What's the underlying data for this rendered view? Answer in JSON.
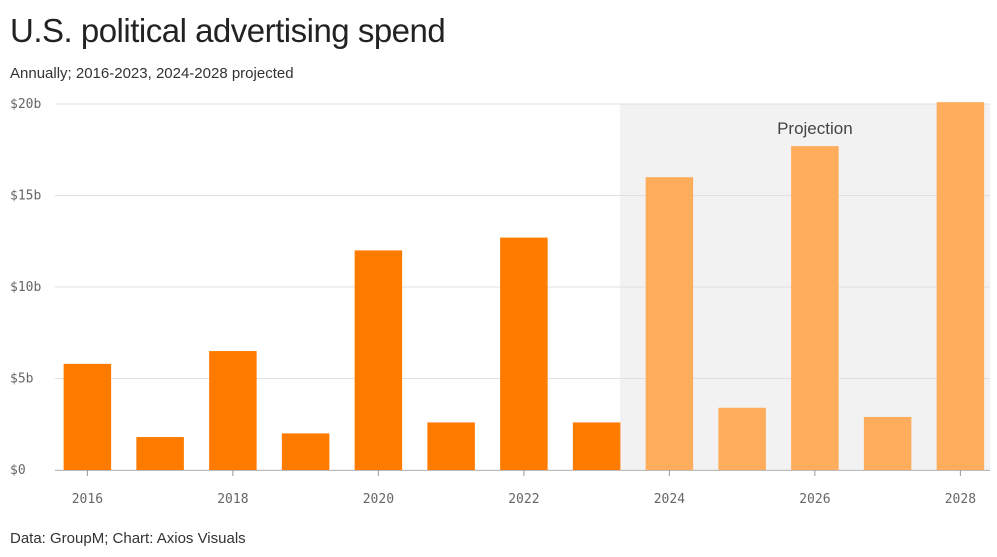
{
  "header": {
    "title": "U.S. political advertising spend",
    "subtitle": "Annually; 2016-2023, 2024-2028 projected"
  },
  "footer": {
    "source": "Data: GroupM; Chart: Axios Visuals"
  },
  "colors": {
    "actual": "#ff7b00",
    "projected": "#ffad5c",
    "projection_band": "#f2f2f2",
    "gridline": "#e0e0e0"
  },
  "chart_data": {
    "type": "bar",
    "title": "U.S. political advertising spend",
    "subtitle": "Annually; 2016-2023, 2024-2028 projected",
    "categories": [
      2016,
      2017,
      2018,
      2019,
      2020,
      2021,
      2022,
      2023,
      2024,
      2025,
      2026,
      2027,
      2028
    ],
    "values": [
      5.8,
      1.8,
      6.5,
      2.0,
      12.0,
      2.6,
      12.7,
      2.6,
      16.0,
      3.4,
      17.7,
      2.9,
      20.1
    ],
    "projected_from": 2024,
    "projection_label": "Projection",
    "ylim": [
      0,
      20
    ],
    "y_ticks": [
      0,
      5,
      10,
      15,
      20
    ],
    "y_tick_labels": [
      "$0",
      "$5b",
      "$10b",
      "$15b",
      "$20b"
    ],
    "x_tick_labels": [
      "2016",
      "2018",
      "2020",
      "2022",
      "2024",
      "2026",
      "2028"
    ],
    "xlabel": "",
    "ylabel": "",
    "grid": true,
    "legend": "none"
  }
}
